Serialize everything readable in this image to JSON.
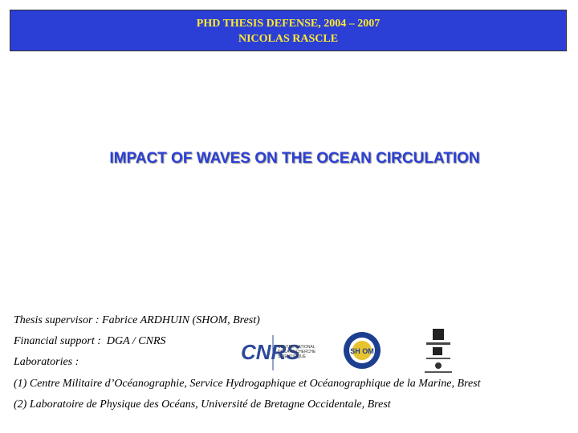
{
  "header": {
    "title": "PHD THESIS DEFENSE, 2004 – 2007",
    "author": "NICOLAS RASCLE"
  },
  "title": "IMPACT OF WAVES ON THE OCEAN CIRCULATION",
  "details": [
    "Thesis supervisor : Fabrice ARDHUIN (SHOM, Brest)",
    "Financial support :  DGA / CNRS",
    "Laboratories :",
    "(1) Centre Militaire d’Océanographie, Service Hydrogaphique et Océanographique de la Marine, Brest",
    "(2) Laboratoire de Physique des Océans, Université de Bretagne Occidentale, Brest"
  ],
  "logos": {
    "cnrs": {
      "mark": "CNRS",
      "caption": [
        "CENTRE NATIONAL",
        "DE LA RECHERCHE",
        "SCIENTIFIQUE"
      ]
    },
    "shom": "SH OM"
  }
}
